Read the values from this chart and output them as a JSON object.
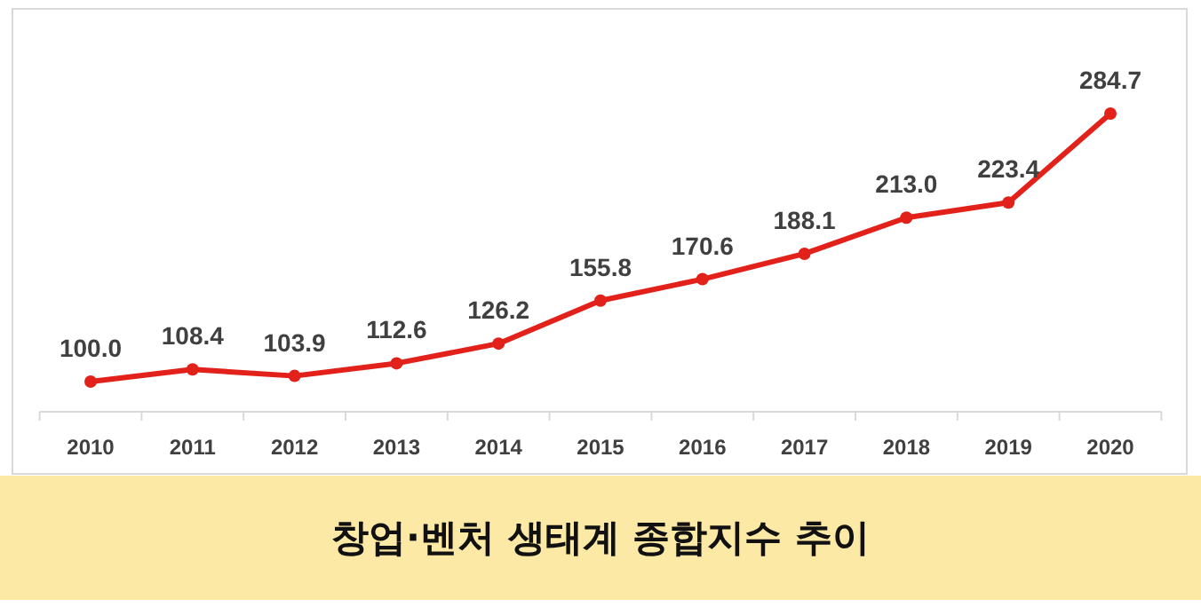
{
  "chart_data": {
    "type": "line",
    "title": "창업·벤처 생태계 종합지수 추이",
    "categories": [
      "2010",
      "2011",
      "2012",
      "2013",
      "2014",
      "2015",
      "2016",
      "2017",
      "2018",
      "2019",
      "2020"
    ],
    "series": [
      {
        "color": "#e3211b",
        "values": [
          100.0,
          108.4,
          103.9,
          112.6,
          126.2,
          155.8,
          170.6,
          188.1,
          213.0,
          223.4,
          284.7
        ],
        "value_labels": [
          "100.0",
          "108.4",
          "103.9",
          "112.6",
          "126.2",
          "155.8",
          "170.6",
          "188.1",
          "213.0",
          "223.4",
          "284.7"
        ]
      }
    ],
    "marker": "circle",
    "line_style": "solid"
  }
}
